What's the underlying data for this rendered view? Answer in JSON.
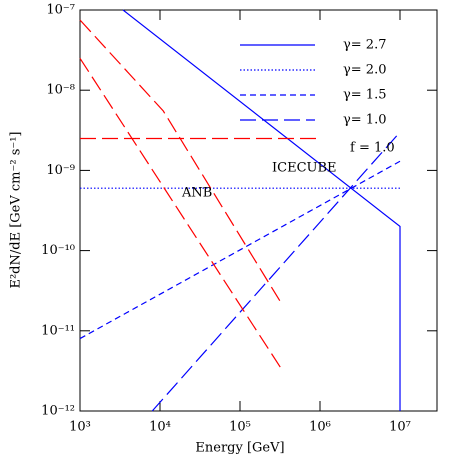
{
  "chart_data": {
    "type": "line",
    "xlabel": "Energy [GeV]",
    "ylabel": "E²dN/dE [GeV cm⁻² s⁻¹]",
    "xscale": "log",
    "yscale": "log",
    "xlim": [
      1000,
      29000000
    ],
    "ylim": [
      1e-12,
      1e-07
    ],
    "xticks": [
      {
        "value": 1000,
        "label": "10³"
      },
      {
        "value": 10000,
        "label": "10⁴"
      },
      {
        "value": 100000,
        "label": "10⁵"
      },
      {
        "value": 1000000,
        "label": "10⁶"
      },
      {
        "value": 10000000,
        "label": "10⁷"
      }
    ],
    "yticks": [
      {
        "value": 1e-12,
        "label": "10⁻¹²"
      },
      {
        "value": 1e-11,
        "label": "10⁻¹¹"
      },
      {
        "value": 1e-10,
        "label": "10⁻¹⁰"
      },
      {
        "value": 1e-09,
        "label": "10⁻⁹"
      },
      {
        "value": 1e-08,
        "label": "10⁻⁸"
      },
      {
        "value": 1e-07,
        "label": "10⁻⁷"
      }
    ],
    "series": [
      {
        "name": "γ= 2.7",
        "color": "#0000ff",
        "dash": "solid",
        "x": [
          3450,
          10000000,
          10000000
        ],
        "y": [
          1e-07,
          2e-10,
          1e-12
        ]
      },
      {
        "name": "γ= 2.0",
        "color": "#0000ff",
        "dash": "dotted",
        "x": [
          1000,
          10000000
        ],
        "y": [
          6e-10,
          6e-10
        ]
      },
      {
        "name": "γ= 1.5",
        "color": "#0000ff",
        "dash": "dashed",
        "x": [
          1000,
          10000000
        ],
        "y": [
          8e-12,
          1.3e-09
        ]
      },
      {
        "name": "γ= 1.0",
        "color": "#0000ff",
        "dash": "longdash",
        "x": [
          8000,
          10000000
        ],
        "y": [
          1e-12,
          3e-09
        ]
      },
      {
        "color": "#ff0000",
        "dash": "longdash",
        "x": [
          1000,
          1000000
        ],
        "y": [
          2.5e-09,
          2.5e-09
        ]
      },
      {
        "color": "#ff0000",
        "dash": "longdash",
        "x": [
          1000,
          11000,
          320000
        ],
        "y": [
          7.5e-08,
          5.5e-09,
          2.3e-11
        ]
      },
      {
        "color": "#ff0000",
        "dash": "longdash",
        "x": [
          1000,
          320000
        ],
        "y": [
          2.5e-08,
          3.5e-12
        ]
      }
    ],
    "annotations": [
      {
        "text": "f = 1.0",
        "color": "#000000"
      },
      {
        "text": "ICECUBE",
        "color": "#ff0000"
      },
      {
        "text": "ANB",
        "color": "#ff0000"
      }
    ]
  }
}
